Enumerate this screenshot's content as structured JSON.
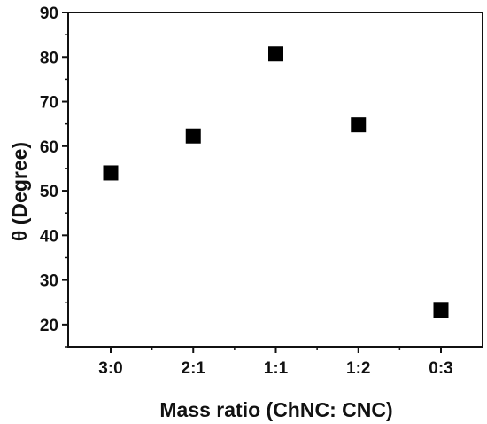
{
  "chart_data": {
    "type": "scatter",
    "title": "",
    "xlabel": "Mass ratio (ChNC: CNC)",
    "ylabel": "θ (Degree)",
    "categories": [
      "3:0",
      "2:1",
      "1:1",
      "1:2",
      "0:3"
    ],
    "values": [
      54,
      62.3,
      80.7,
      64.8,
      23.2
    ],
    "ylim": [
      15,
      90
    ],
    "yticks": [
      "20",
      "30",
      "40",
      "50",
      "60",
      "70",
      "80",
      "90"
    ],
    "grid": false,
    "legend": "none",
    "marker": "square",
    "marker_color": "#000000"
  }
}
